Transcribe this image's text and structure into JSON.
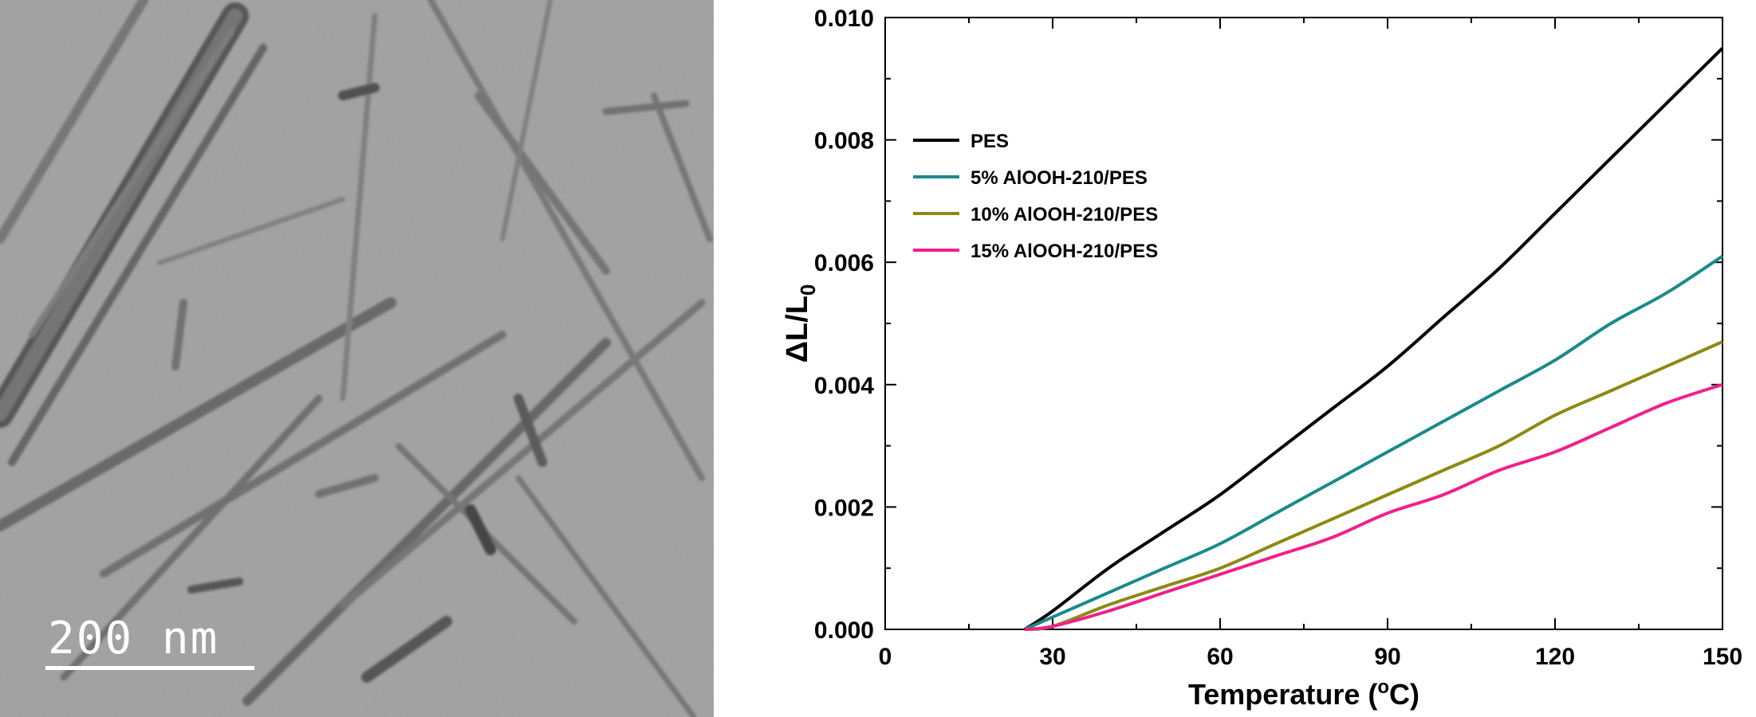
{
  "figure": {
    "tem_image": {
      "scale_bar_label": "200 nm"
    }
  },
  "colors": {
    "PES": "#000000",
    "5% AlOOH-210/PES": "#1a8a8c",
    "10% AlOOH-210/PES": "#8c8a12",
    "15% AlOOH-210/PES": "#f0208a"
  },
  "chart_data": {
    "type": "line",
    "title": "",
    "xlabel": "Temperature (°C)",
    "ylabel": "ΔL/L0",
    "xlim": [
      0,
      150
    ],
    "ylim": [
      0,
      0.01
    ],
    "xticks": [
      "0",
      "30",
      "60",
      "90",
      "120",
      "150"
    ],
    "yticks": [
      "0.000",
      "0.002",
      "0.004",
      "0.006",
      "0.008",
      "0.010"
    ],
    "legend_position": "upper-left",
    "grid": false,
    "x": [
      25,
      30,
      40,
      50,
      60,
      70,
      80,
      90,
      100,
      110,
      120,
      130,
      140,
      150
    ],
    "series": [
      {
        "name": "PES",
        "values": [
          0,
          0.0003,
          0.001,
          0.0016,
          0.0022,
          0.0029,
          0.0036,
          0.0043,
          0.0051,
          0.0059,
          0.0068,
          0.0077,
          0.0086,
          0.0095
        ]
      },
      {
        "name": "5% AlOOH-210/PES",
        "values": [
          0,
          0.0002,
          0.0006,
          0.001,
          0.0014,
          0.0019,
          0.0024,
          0.0029,
          0.0034,
          0.0039,
          0.0044,
          0.005,
          0.0055,
          0.0061
        ]
      },
      {
        "name": "10% AlOOH-210/PES",
        "values": [
          0,
          5e-05,
          0.0004,
          0.0007,
          0.001,
          0.0014,
          0.0018,
          0.0022,
          0.0026,
          0.003,
          0.0035,
          0.0039,
          0.0043,
          0.0047
        ]
      },
      {
        "name": "15% AlOOH-210/PES",
        "values": [
          0,
          5e-05,
          0.0003,
          0.0006,
          0.0009,
          0.0012,
          0.0015,
          0.0019,
          0.0022,
          0.0026,
          0.0029,
          0.0033,
          0.0037,
          0.004
        ]
      }
    ]
  }
}
